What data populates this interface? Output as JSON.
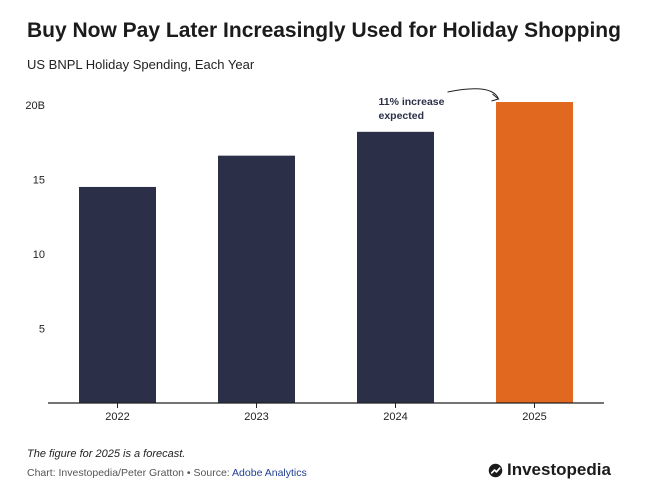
{
  "header": {
    "title": "Buy Now Pay Later Increasingly Used for Holiday Shopping",
    "subtitle": "US BNPL Holiday Spending, Each Year"
  },
  "chart_data": {
    "type": "bar",
    "categories": [
      "2022",
      "2023",
      "2024",
      "2025"
    ],
    "values": [
      14.5,
      16.6,
      18.2,
      20.2
    ],
    "ylim": [
      0,
      20
    ],
    "yticks": [
      {
        "value": 5,
        "label": "5"
      },
      {
        "value": 10,
        "label": "10"
      },
      {
        "value": 15,
        "label": "15"
      },
      {
        "value": 20,
        "label": "20B"
      }
    ],
    "bar_colors": [
      "#2b3048",
      "#2b3048",
      "#2b3048",
      "#e0691f"
    ],
    "grid": false,
    "annotation": {
      "lines": [
        "11% increase",
        "expected"
      ],
      "target_category": "2025"
    }
  },
  "footer": {
    "note": "The figure for 2025 is a forecast.",
    "credit_prefix": "Chart: Investopedia/Peter Gratton • Source: ",
    "credit_source": "Adobe Analytics",
    "brand": "Investopedia"
  }
}
